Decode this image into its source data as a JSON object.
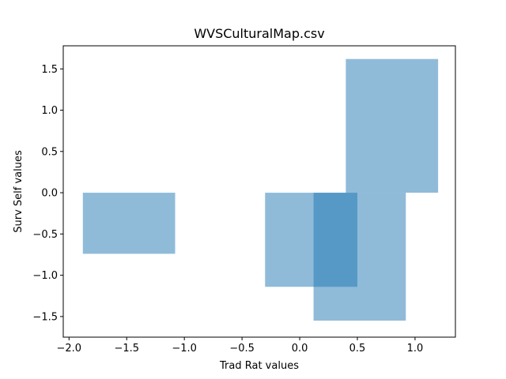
{
  "chart_data": {
    "type": "bar",
    "title": "WVSCulturalMap.csv",
    "xlabel": "Trad Rat values",
    "ylabel": "Surv Self values",
    "xlim": [
      -2.05,
      1.35
    ],
    "ylim": [
      -1.75,
      1.78
    ],
    "xticks": [
      -2.0,
      -1.5,
      -1.0,
      -0.5,
      0.0,
      0.5,
      1.0
    ],
    "xtick_labels": [
      "−2.0",
      "−1.5",
      "−1.0",
      "−0.5",
      "0.0",
      "0.5",
      "1.0"
    ],
    "yticks": [
      -1.5,
      -1.0,
      -0.5,
      0.0,
      0.5,
      1.0,
      1.5
    ],
    "ytick_labels": [
      "−1.5",
      "−1.0",
      "−0.5",
      "0.0",
      "0.5",
      "1.0",
      "1.5"
    ],
    "grid": false,
    "bar_color": "#1f77b4",
    "bar_alpha": 0.5,
    "bars": [
      {
        "x_center": -1.48,
        "width": 0.8,
        "value": -0.74
      },
      {
        "x_center": 0.1,
        "width": 0.8,
        "value": -1.14
      },
      {
        "x_center": 0.8,
        "width": 0.8,
        "value": 1.62
      },
      {
        "x_center": 0.52,
        "width": 0.8,
        "value": -1.55
      }
    ]
  }
}
